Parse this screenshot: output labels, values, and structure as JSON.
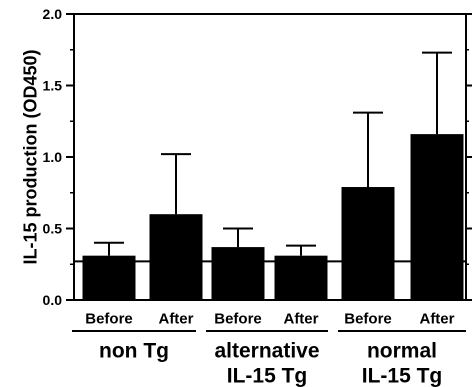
{
  "chart_data": {
    "type": "bar",
    "title": "",
    "ylabel": "IL-15 production (OD450)",
    "xlabel": "",
    "ylim": [
      0,
      2.0
    ],
    "yticks": [
      "0.0",
      "0.5",
      "1.0",
      "1.5",
      "2.0"
    ],
    "yticks_values": [
      0,
      0.5,
      1.0,
      1.5,
      2.0
    ],
    "grid": false,
    "categories": [
      "Before",
      "After",
      "Before",
      "After",
      "Before",
      "After"
    ],
    "values": [
      0.31,
      0.6,
      0.37,
      0.31,
      0.79,
      1.16
    ],
    "error_upper": [
      0.4,
      1.02,
      0.5,
      0.38,
      1.31,
      1.73
    ],
    "reference_line": 0.27,
    "groups": [
      {
        "label_line1": "non Tg",
        "label_line2": "",
        "bars": [
          0,
          1
        ]
      },
      {
        "label_line1": "alternative",
        "label_line2": "IL-15 Tg",
        "bars": [
          2,
          3
        ]
      },
      {
        "label_line1": "normal",
        "label_line2": "IL-15 Tg",
        "bars": [
          4,
          5
        ]
      }
    ],
    "colors": {
      "bar": "#000000",
      "axis": "#000000",
      "background": "#ffffff"
    }
  }
}
